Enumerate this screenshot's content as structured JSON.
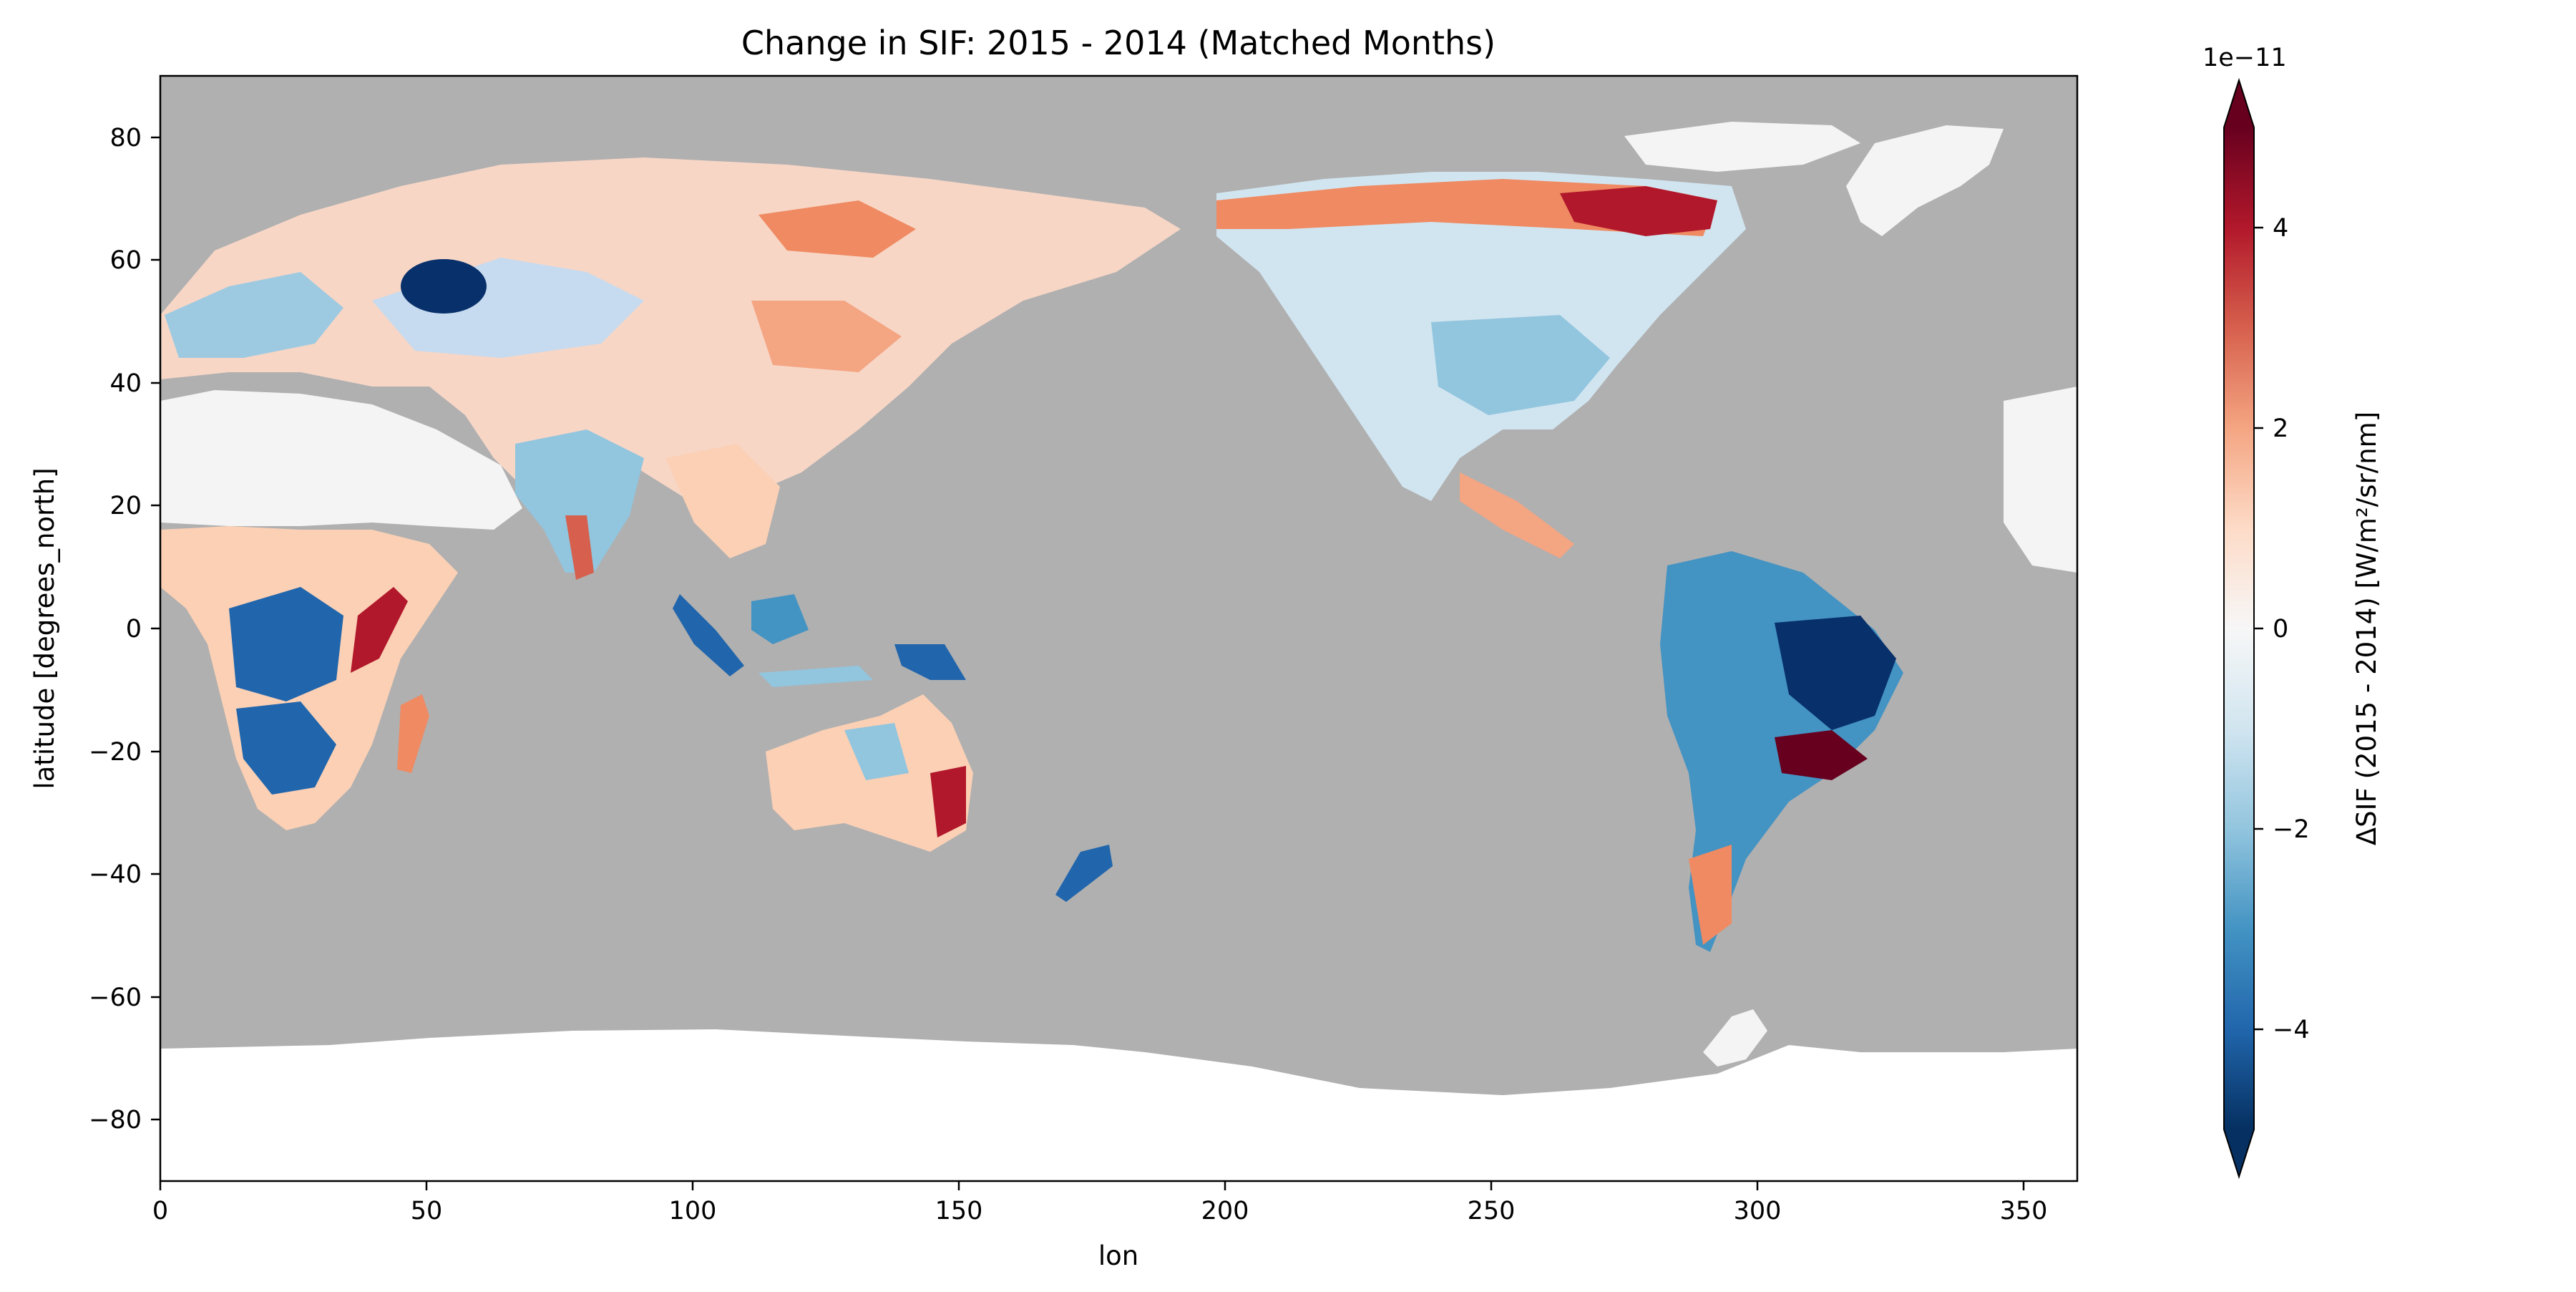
{
  "chart_data": {
    "type": "heatmap",
    "title": "Change in SIF: 2015 - 2014 (Matched Months)",
    "xlabel": "lon",
    "ylabel": "latitude [degrees_north]",
    "xlim": [
      0,
      360
    ],
    "ylim": [
      -90,
      90
    ],
    "x_ticks": [
      0,
      50,
      100,
      150,
      200,
      250,
      300,
      350
    ],
    "y_ticks": [
      80,
      60,
      40,
      20,
      0,
      -20,
      -40,
      -60,
      -80
    ],
    "colorbar": {
      "label": "ΔSIF (2015 - 2014) [W/m²/sr/nm]",
      "scale_label": "1e−11",
      "range": [
        -5,
        5
      ],
      "ticks": [
        4,
        2,
        0,
        -2,
        -4
      ],
      "tick_labels": [
        "4",
        "2",
        "0",
        "−2",
        "−4"
      ],
      "extend": "both",
      "colormap": "RdBu_r"
    },
    "colors": {
      "ocean_missing": "#b0b0b0",
      "land_no_data": "#f4f4f4",
      "antarctica": "#ffffff",
      "strong_negative": "#053061",
      "strong_positive": "#67001f"
    }
  }
}
